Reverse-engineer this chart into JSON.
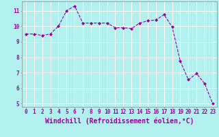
{
  "x": [
    0,
    1,
    2,
    3,
    4,
    5,
    6,
    7,
    8,
    9,
    10,
    11,
    12,
    13,
    14,
    15,
    16,
    17,
    18,
    19,
    20,
    21,
    22,
    23
  ],
  "y": [
    9.5,
    9.5,
    9.4,
    9.5,
    10.0,
    11.0,
    11.3,
    10.2,
    10.2,
    10.2,
    10.2,
    9.9,
    9.9,
    9.85,
    10.2,
    10.35,
    10.4,
    10.75,
    9.95,
    7.75,
    6.55,
    6.95,
    6.3,
    5.0
  ],
  "line_color": "#990099",
  "marker": "D",
  "marker_size": 2.0,
  "bg_color": "#b2f0f0",
  "grid_color": "#ffffff",
  "xlabel": "Windchill (Refroidissement éolien,°C)",
  "xlim": [
    -0.5,
    23.5
  ],
  "ylim": [
    4.8,
    11.6
  ],
  "yticks": [
    5,
    6,
    7,
    8,
    9,
    10,
    11
  ],
  "xticks": [
    0,
    1,
    2,
    3,
    4,
    5,
    6,
    7,
    8,
    9,
    10,
    11,
    12,
    13,
    14,
    15,
    16,
    17,
    18,
    19,
    20,
    21,
    22,
    23
  ],
  "tick_label_fontsize": 5.5,
  "xlabel_fontsize": 7.0,
  "text_color": "#990099",
  "spine_color": "#888888"
}
